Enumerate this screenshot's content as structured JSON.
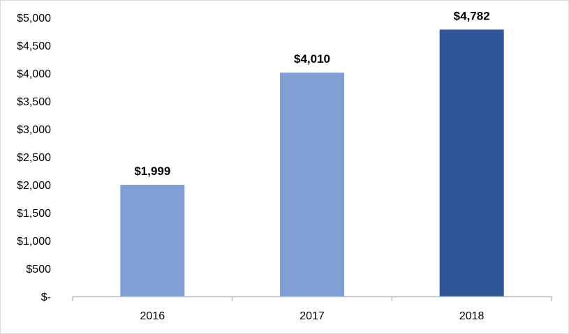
{
  "chart_data": {
    "type": "bar",
    "title": "",
    "xlabel": "",
    "ylabel": "",
    "categories": [
      "2016",
      "2017",
      "2018"
    ],
    "values": [
      1999,
      4010,
      4782
    ],
    "data_labels": [
      "$1,999",
      "$4,010",
      "$4,782"
    ],
    "bar_colors": [
      "#7f9fd5",
      "#7f9fd5",
      "#2f5597"
    ],
    "ylim": [
      0,
      5000
    ],
    "y_ticks": [
      0,
      500,
      1000,
      1500,
      2000,
      2500,
      3000,
      3500,
      4000,
      4500,
      5000
    ],
    "y_tick_labels": [
      "$-",
      "$500",
      "$1,000",
      "$1,500",
      "$2,000",
      "$2,500",
      "$3,000",
      "$3,500",
      "$4,000",
      "$4,500",
      "$5,000"
    ],
    "grid": false,
    "legend": "none"
  }
}
